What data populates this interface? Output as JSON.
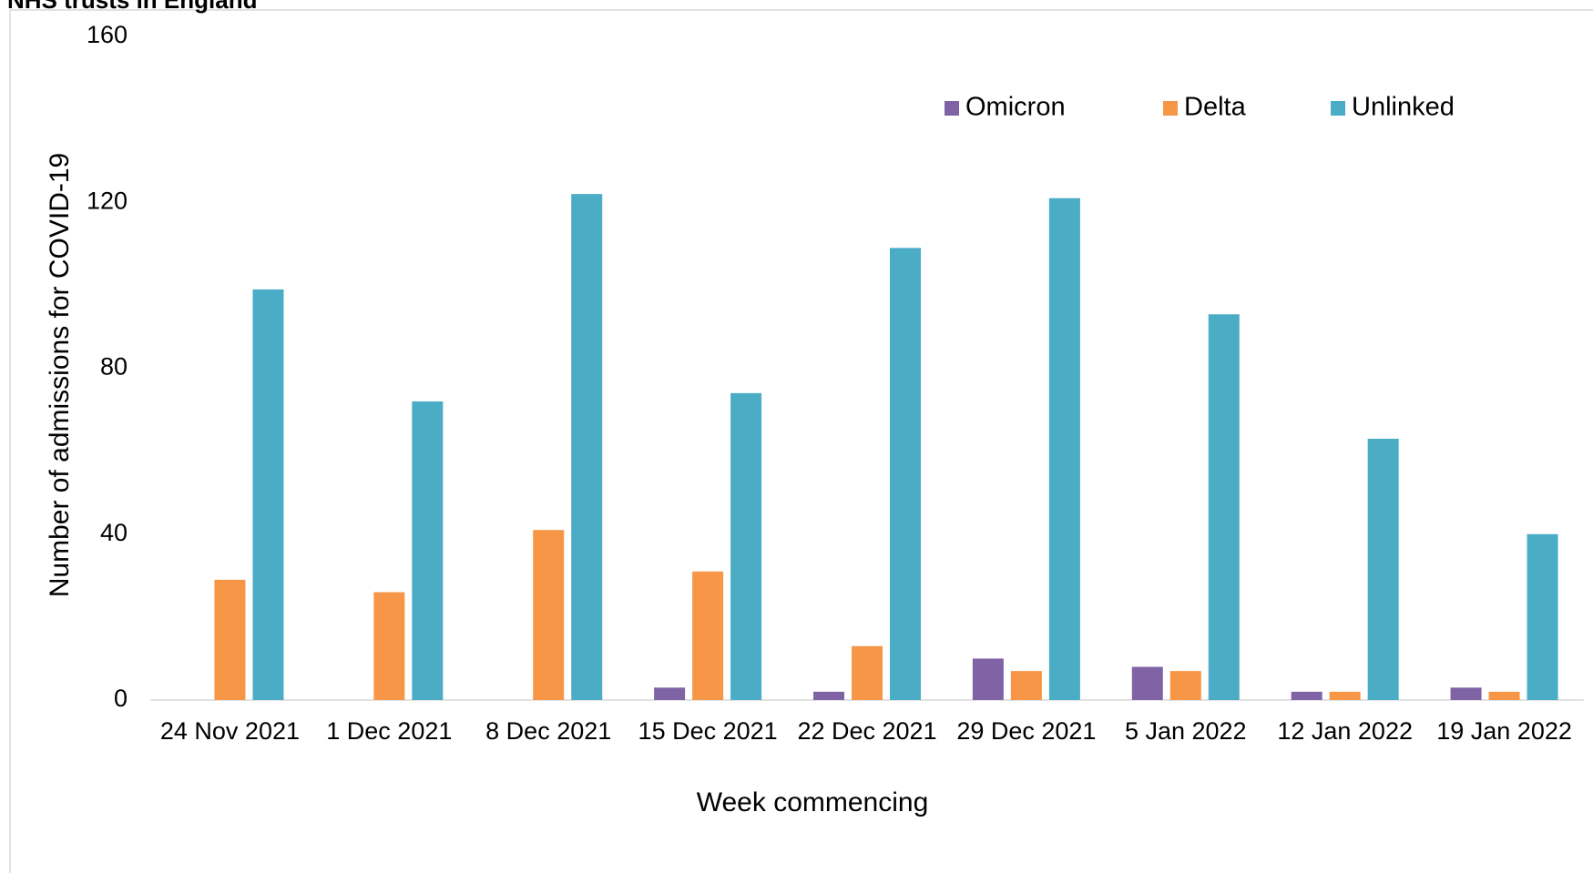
{
  "chart_data": {
    "type": "bar",
    "title": "NHS trusts in England",
    "x_label": "Week commencing",
    "y_label": "Number of admissions for COVID-19",
    "categories": [
      "24 Nov 2021",
      "1 Dec 2021",
      "8 Dec 2021",
      "15 Dec 2021",
      "22 Dec 2021",
      "29 Dec 2021",
      "5 Jan 2022",
      "12 Jan 2022",
      "19 Jan 2022"
    ],
    "series": [
      {
        "name": "Omicron",
        "color": "#7f63a5",
        "values": [
          0,
          0,
          0,
          3,
          2,
          10,
          8,
          2,
          3
        ]
      },
      {
        "name": "Delta",
        "color": "#f79646",
        "values": [
          29,
          26,
          41,
          31,
          13,
          7,
          7,
          2,
          2
        ]
      },
      {
        "name": "Unlinked",
        "color": "#4bacc6",
        "values": [
          99,
          72,
          122,
          74,
          109,
          121,
          93,
          63,
          40
        ]
      }
    ],
    "ylim": [
      0,
      160
    ],
    "yticks": [
      0,
      40,
      80,
      120,
      160
    ],
    "grid": false,
    "legend": "top-right"
  }
}
